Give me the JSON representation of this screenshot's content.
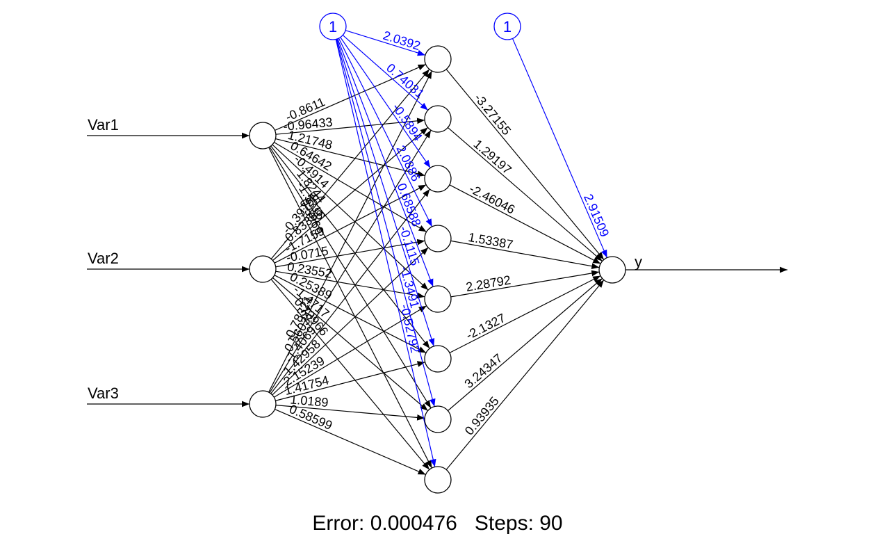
{
  "colors": {
    "weights": "#000000",
    "bias": "#0000ff",
    "background": "#ffffff"
  },
  "inputs": [
    "Var1",
    "Var2",
    "Var3"
  ],
  "output": "y",
  "bias_label": "1",
  "hidden_count": 8,
  "weights_input_hidden": [
    [
      "-0.8611",
      "-0.96433",
      "1.21748",
      "0.64642",
      "-0.4914",
      "1.8244",
      "-1.5316",
      "-0.5966"
    ],
    [
      "-0.39796",
      "-0.83396",
      "-1.7159",
      "-0.0715",
      "0.23552",
      "0.25389",
      "-1.4717",
      "0.73966"
    ],
    [
      "-0.78321",
      "0.56031",
      "-1.4069",
      "1.42958",
      "2.15239",
      "1.41754",
      "1.0189",
      "0.58599"
    ]
  ],
  "weights_bias_hidden": [
    "2.0392",
    "0.74031",
    "-0.5894",
    "2.0886",
    "0.68588",
    "-0.1115",
    "-1.3491",
    "-0.52792"
  ],
  "weights_hidden_output": [
    "-3.27155",
    "1.29197",
    "-2.46046",
    "1.53387",
    "2.28792",
    "-2.1327",
    "3.24347",
    "0.93935"
  ],
  "weight_bias_output": "2.91509",
  "footer": {
    "error_label": "Error: 0.000476",
    "steps_label": "Steps: 90"
  }
}
